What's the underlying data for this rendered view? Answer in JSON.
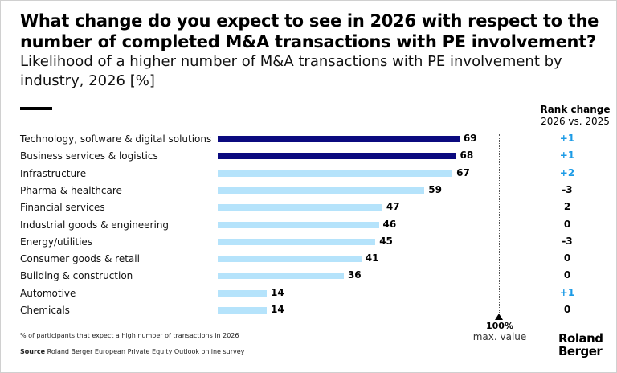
{
  "title": "What change do you expect to see in 2026 with respect to the number of completed M&A transactions with PE involvement?",
  "subtitle": "Likelihood of a higher number of M&A transactions with PE involvement by industry, 2026 [%]",
  "rank_header": {
    "title": "Rank change",
    "sub": "2026 vs. 2025"
  },
  "max_marker": {
    "value": "100%",
    "label": "max. value"
  },
  "footnote": "% of participants that expect a high number of transactions in 2026",
  "source_label": "Source",
  "source_text": "Roland Berger European Private Equity Outlook online survey",
  "logo": {
    "line1": "Roland",
    "line2": "Berger"
  },
  "colors": {
    "highlight": "#0b0a7f",
    "normal": "#b5e3fb",
    "positive": "#1c9be6",
    "neutral": "#000000"
  },
  "chart_data": {
    "type": "bar",
    "orientation": "horizontal",
    "title": "Likelihood of a higher number of M&A transactions with PE involvement by industry, 2026 [%]",
    "categories": [
      "Technology, software & digital solutions",
      "Business services & logistics",
      "Infrastructure",
      "Pharma & healthcare",
      "Financial services",
      "Industrial goods & engineering",
      "Energy/utilities",
      "Consumer goods & retail",
      "Building & construction",
      "Automotive",
      "Chemicals"
    ],
    "values": [
      69,
      68,
      67,
      59,
      47,
      46,
      45,
      41,
      36,
      14,
      14
    ],
    "highlight": [
      true,
      true,
      false,
      false,
      false,
      false,
      false,
      false,
      false,
      false,
      false
    ],
    "rank_change": [
      "+1",
      "+1",
      "+2",
      "-3",
      "2",
      "0",
      "-3",
      "0",
      "0",
      "+1",
      "0"
    ],
    "xlim": [
      0,
      100
    ]
  }
}
